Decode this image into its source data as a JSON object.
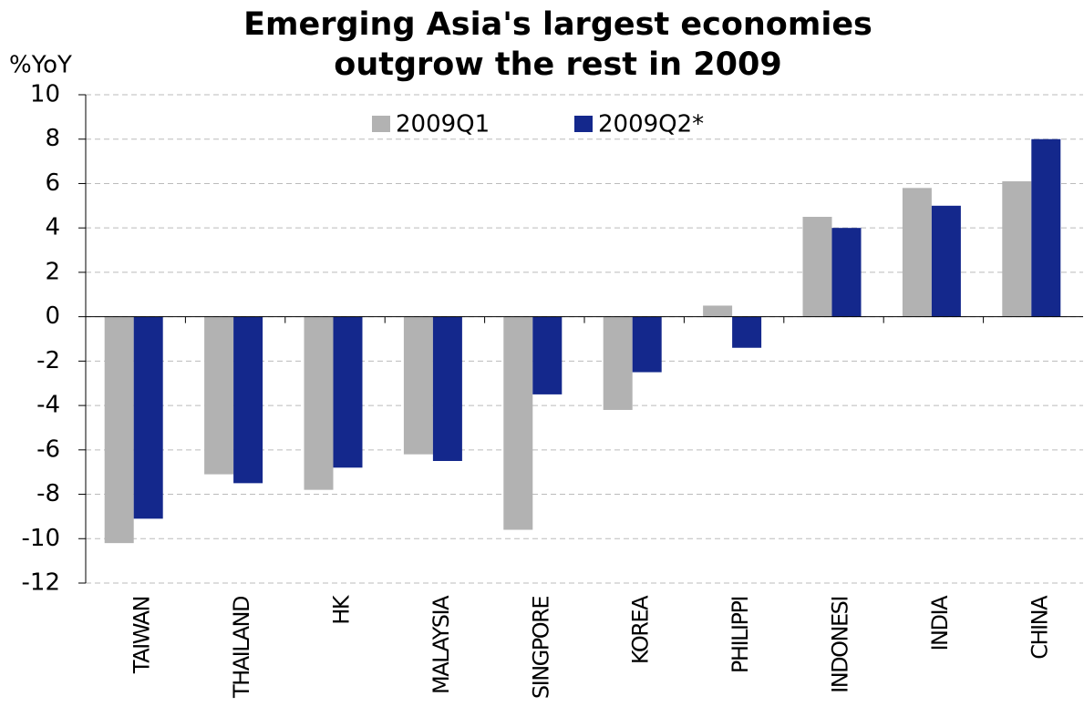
{
  "chart_data": {
    "type": "bar",
    "title": [
      "Emerging Asia's largest economies",
      "outgrow the rest in 2009"
    ],
    "y_axis_label": "%YoY",
    "categories": [
      "TAIWAN",
      "THAILAND",
      "HK",
      "MALAYSIA",
      "SINGPORE",
      "KOREA",
      "PHILIPPI",
      "INDONESI",
      "INDIA",
      "CHINA"
    ],
    "series": [
      {
        "name": "2009Q1",
        "color": "#b2b2b2",
        "values": [
          -10.2,
          -7.1,
          -7.8,
          -6.2,
          -9.6,
          -4.2,
          0.5,
          4.5,
          5.8,
          6.1
        ]
      },
      {
        "name": "2009Q2*",
        "color": "#14288c",
        "values": [
          -9.1,
          -7.5,
          -6.8,
          -6.5,
          -3.5,
          -2.5,
          -1.4,
          4.0,
          5.0,
          8.0
        ]
      }
    ],
    "ylim": [
      -12,
      10
    ],
    "yticks": [
      10,
      8,
      6,
      4,
      2,
      0,
      -2,
      -4,
      -6,
      -8,
      -10,
      -12
    ],
    "grid": true,
    "legend": "top"
  }
}
